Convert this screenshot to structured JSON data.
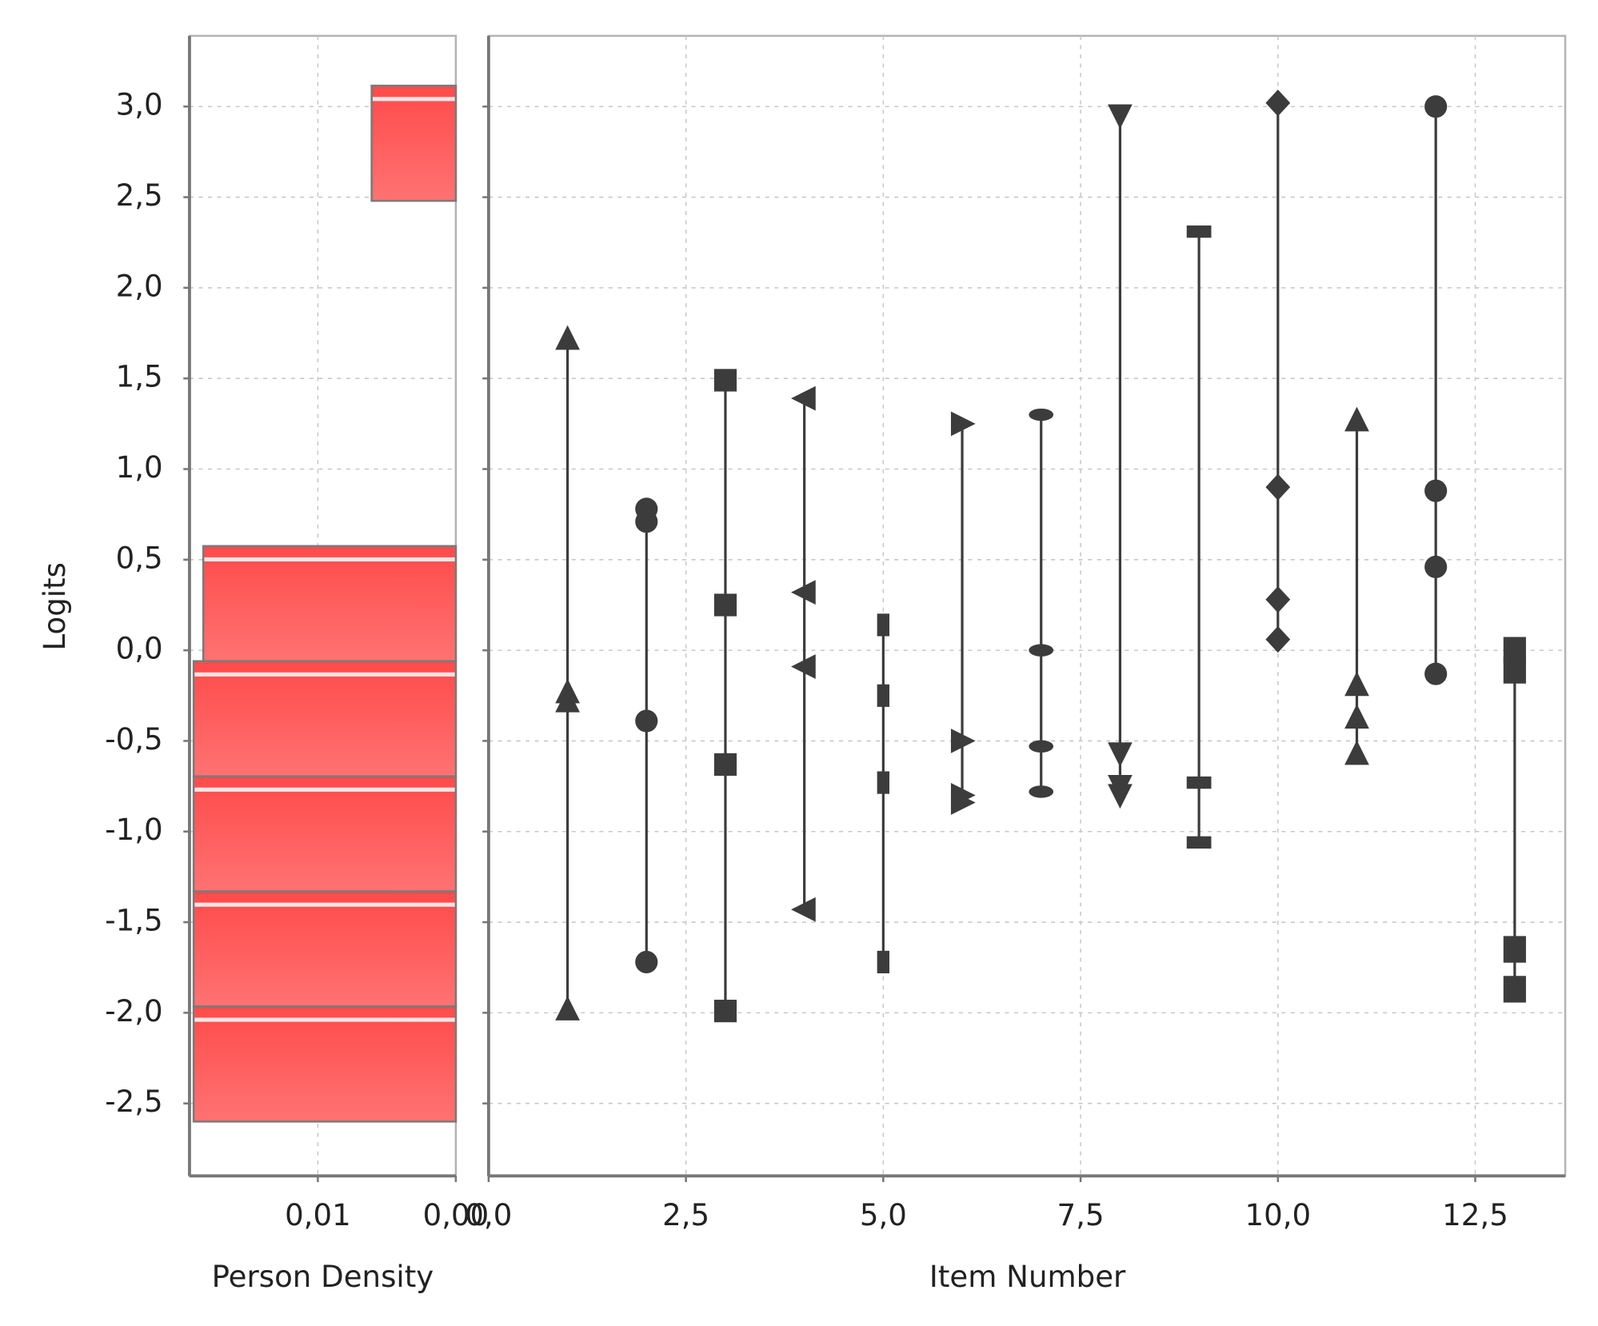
{
  "chart_data": [
    {
      "type": "hbar-histogram",
      "xlabel": "Person Density",
      "ylabel": "Logits",
      "color": "#ff5656",
      "xlim": [
        0.0193,
        0
      ],
      "xticks": [
        {
          "value": 0.01,
          "label": "0,01"
        },
        {
          "value": 0,
          "label": "0,00"
        }
      ],
      "ylim": [
        -2.9,
        3.39
      ],
      "yticks": [
        {
          "value": -2.5,
          "label": "-2,5"
        },
        {
          "value": -2.0,
          "label": "-2,0"
        },
        {
          "value": -1.5,
          "label": "-1,5"
        },
        {
          "value": -1.0,
          "label": "-1,0"
        },
        {
          "value": -0.5,
          "label": "-0,5"
        },
        {
          "value": 0,
          "label": "0,0"
        },
        {
          "value": 0.5,
          "label": "0,5"
        },
        {
          "value": 1.0,
          "label": "1,0"
        },
        {
          "value": 1.5,
          "label": "1,5"
        },
        {
          "value": 2.0,
          "label": "2,0"
        },
        {
          "value": 2.5,
          "label": "2,5"
        },
        {
          "value": 3.0,
          "label": "3,0"
        }
      ],
      "bins": [
        -2.6,
        -1.965,
        -1.33,
        -0.695,
        -0.06,
        0.575,
        1.21,
        1.845,
        2.48,
        3.115
      ],
      "values": [
        0.019,
        0.019,
        0.019,
        0.019,
        0.0183,
        0,
        0,
        0,
        0.0061
      ],
      "grid": true
    },
    {
      "type": "item-thresholds",
      "xlabel": "Item Number",
      "color": "#3c3c3c",
      "xlim": [
        0,
        13.64
      ],
      "xticks": [
        {
          "value": 0,
          "label": "0,0"
        },
        {
          "value": 2.5,
          "label": "2,5"
        },
        {
          "value": 5.0,
          "label": "5,0"
        },
        {
          "value": 7.5,
          "label": "7,5"
        },
        {
          "value": 10.0,
          "label": "10,0"
        },
        {
          "value": 12.5,
          "label": "12,5"
        }
      ],
      "ylim": [
        -2.9,
        3.39
      ],
      "yticks": [
        -2.5,
        -2,
        -1.5,
        -1,
        -0.5,
        0,
        0.5,
        1,
        1.5,
        2,
        2.5,
        3
      ],
      "grid": true,
      "items": [
        {
          "x": 1,
          "marker": "triangle-up",
          "values": [
            1.72,
            -0.23,
            -0.28,
            -1.98
          ]
        },
        {
          "x": 2,
          "marker": "circle",
          "values": [
            0.78,
            0.71,
            -0.39,
            -1.72
          ]
        },
        {
          "x": 3,
          "marker": "square",
          "values": [
            1.49,
            0.25,
            -0.63,
            -1.99
          ]
        },
        {
          "x": 4,
          "marker": "triangle-left",
          "values": [
            1.39,
            0.32,
            -0.09,
            -1.43
          ]
        },
        {
          "x": 5,
          "marker": "thin-rect",
          "values": [
            0.14,
            -0.25,
            -0.73,
            -1.72
          ]
        },
        {
          "x": 6,
          "marker": "triangle-right",
          "values": [
            1.25,
            -0.5,
            -0.8,
            -0.84
          ]
        },
        {
          "x": 7,
          "marker": "ellipse",
          "values": [
            1.3,
            0,
            -0.53,
            -0.78
          ]
        },
        {
          "x": 8,
          "marker": "triangle-down",
          "values": [
            2.95,
            -0.57,
            -0.75,
            -0.8
          ]
        },
        {
          "x": 9,
          "marker": "flat-rect",
          "values": [
            2.31,
            -0.73,
            -1.06
          ]
        },
        {
          "x": 10,
          "marker": "diamond",
          "values": [
            3.02,
            0.9,
            0.28,
            0.06
          ]
        },
        {
          "x": 11,
          "marker": "triangle-up",
          "values": [
            1.27,
            -0.19,
            -0.37,
            -0.57
          ]
        },
        {
          "x": 12,
          "marker": "circle",
          "values": [
            3.0,
            0.88,
            0.46,
            -0.13
          ]
        },
        {
          "x": 13,
          "marker": "tall-rect",
          "values": [
            0,
            -0.11,
            -1.65,
            -1.87
          ]
        }
      ]
    }
  ]
}
